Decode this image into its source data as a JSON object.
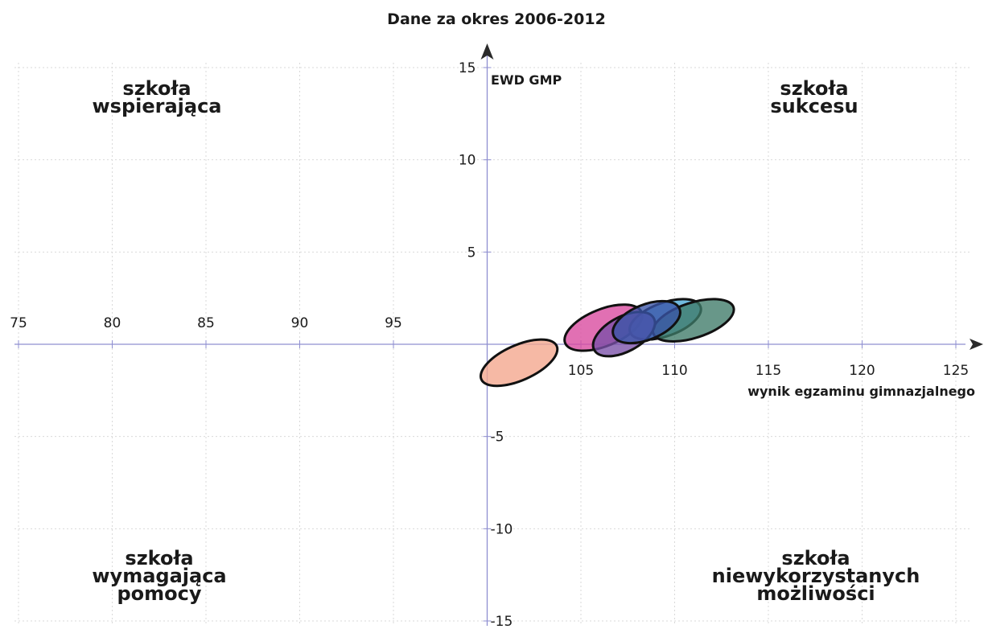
{
  "chart_data": {
    "type": "scatter",
    "title": "Dane za okres 2006-2012",
    "xlabel": "wynik egzaminu gimnazjalnego",
    "ylabel": "EWD GMP",
    "xlim": [
      75,
      125
    ],
    "ylim": [
      -15,
      15
    ],
    "x_origin": 100,
    "x_ticks": [
      75,
      80,
      85,
      90,
      95,
      105,
      110,
      115,
      120,
      125
    ],
    "y_ticks": [
      15,
      10,
      5,
      -5,
      -10,
      -15
    ],
    "grid": true,
    "quadrant_labels": {
      "top_left": [
        "szkoła",
        "wspierająca"
      ],
      "top_right": [
        "szkoła",
        "sukcesu"
      ],
      "bottom_left": [
        "szkoła",
        "wymagająca",
        "pomocy"
      ],
      "bottom_right": [
        "szkoła",
        "niewykorzystanych",
        "możliwości"
      ]
    },
    "series": [
      {
        "x": 101.7,
        "y": -1.0,
        "rx": 2.2,
        "ry": 0.95,
        "angle_deg": 24,
        "color": "#f4a58c"
      },
      {
        "x": 106.2,
        "y": 0.9,
        "rx": 2.2,
        "ry": 1.0,
        "angle_deg": 22,
        "color": "#d9489d"
      },
      {
        "x": 109.5,
        "y": 1.35,
        "rx": 2.0,
        "ry": 0.9,
        "angle_deg": 20,
        "color": "#49a7d6"
      },
      {
        "x": 111.0,
        "y": 1.3,
        "rx": 2.25,
        "ry": 0.95,
        "angle_deg": 18,
        "color": "#3e7a68"
      },
      {
        "x": 107.3,
        "y": 0.55,
        "rx": 1.8,
        "ry": 0.95,
        "angle_deg": 28,
        "color": "#7a4fa8"
      },
      {
        "x": 108.5,
        "y": 1.2,
        "rx": 1.9,
        "ry": 0.95,
        "angle_deg": 22,
        "color": "#3a55a8"
      }
    ]
  }
}
